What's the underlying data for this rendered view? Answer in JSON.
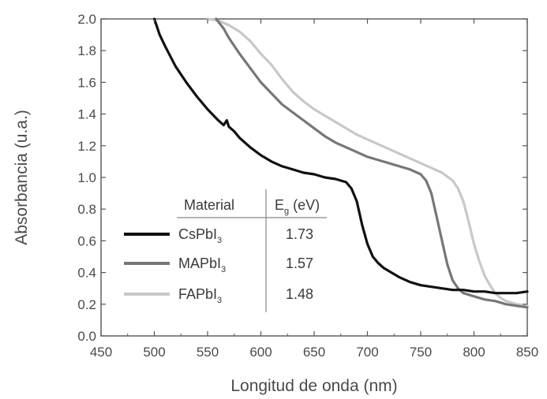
{
  "chart_data": {
    "type": "line",
    "xlabel": "Longitud de onda (nm)",
    "ylabel": "Absorbancia (u.a.)",
    "xlim": [
      450,
      850
    ],
    "ylim": [
      0.0,
      2.0
    ],
    "xticks": [
      "450",
      "500",
      "550",
      "600",
      "650",
      "700",
      "750",
      "800",
      "850"
    ],
    "yticks": [
      "0.0",
      "0.2",
      "0.4",
      "0.6",
      "0.8",
      "1.0",
      "1.2",
      "1.4",
      "1.6",
      "1.8",
      "2.0"
    ],
    "grid": false,
    "legend_placement": "lower-left",
    "legend": {
      "header_material": "Material",
      "header_eg_main": "E",
      "header_eg_sub": "g",
      "header_eg_unit": " (eV)"
    },
    "series": [
      {
        "name": "CsPbI3",
        "name_main": "CsPbI",
        "name_sub": "3",
        "eg": "1.73",
        "color": "#111111",
        "x": [
          500,
          505,
          510,
          520,
          530,
          540,
          550,
          560,
          565,
          568,
          570,
          575,
          580,
          590,
          600,
          610,
          620,
          630,
          640,
          650,
          660,
          670,
          675,
          680,
          685,
          690,
          695,
          700,
          705,
          710,
          715,
          720,
          730,
          740,
          750,
          760,
          770,
          780,
          790,
          800,
          810,
          820,
          830,
          840,
          850
        ],
        "y": [
          2.0,
          1.9,
          1.83,
          1.7,
          1.6,
          1.51,
          1.43,
          1.36,
          1.33,
          1.36,
          1.32,
          1.29,
          1.25,
          1.19,
          1.14,
          1.1,
          1.07,
          1.05,
          1.03,
          1.02,
          1.0,
          0.99,
          0.98,
          0.97,
          0.93,
          0.85,
          0.7,
          0.58,
          0.5,
          0.46,
          0.43,
          0.41,
          0.37,
          0.34,
          0.32,
          0.31,
          0.3,
          0.29,
          0.29,
          0.28,
          0.28,
          0.27,
          0.27,
          0.27,
          0.28
        ]
      },
      {
        "name": "MAPbI3",
        "name_main": "MAPbI",
        "name_sub": "3",
        "eg": "1.57",
        "color": "#777777",
        "x": [
          558,
          565,
          570,
          580,
          590,
          600,
          610,
          620,
          630,
          640,
          650,
          660,
          670,
          680,
          690,
          700,
          710,
          720,
          730,
          740,
          750,
          755,
          760,
          765,
          770,
          775,
          780,
          785,
          790,
          800,
          810,
          820,
          830,
          840,
          850
        ],
        "y": [
          2.0,
          1.94,
          1.88,
          1.78,
          1.69,
          1.6,
          1.53,
          1.46,
          1.41,
          1.36,
          1.31,
          1.26,
          1.22,
          1.19,
          1.16,
          1.13,
          1.11,
          1.09,
          1.07,
          1.05,
          1.02,
          0.98,
          0.9,
          0.75,
          0.6,
          0.45,
          0.35,
          0.3,
          0.27,
          0.25,
          0.23,
          0.22,
          0.2,
          0.19,
          0.18
        ]
      },
      {
        "name": "FAPbI3",
        "name_main": "FAPbI",
        "name_sub": "3",
        "eg": "1.48",
        "color": "#c8c8c8",
        "x": [
          550,
          560,
          570,
          580,
          590,
          600,
          610,
          620,
          630,
          640,
          650,
          660,
          670,
          680,
          690,
          700,
          710,
          720,
          730,
          740,
          750,
          760,
          770,
          780,
          785,
          790,
          795,
          800,
          805,
          810,
          815,
          820,
          825,
          830,
          840,
          850
        ],
        "y": [
          2.0,
          1.99,
          1.96,
          1.92,
          1.86,
          1.78,
          1.71,
          1.62,
          1.54,
          1.48,
          1.43,
          1.39,
          1.35,
          1.31,
          1.27,
          1.24,
          1.21,
          1.18,
          1.15,
          1.12,
          1.09,
          1.06,
          1.03,
          0.98,
          0.93,
          0.85,
          0.72,
          0.58,
          0.47,
          0.38,
          0.32,
          0.27,
          0.24,
          0.22,
          0.2,
          0.19
        ]
      }
    ]
  }
}
